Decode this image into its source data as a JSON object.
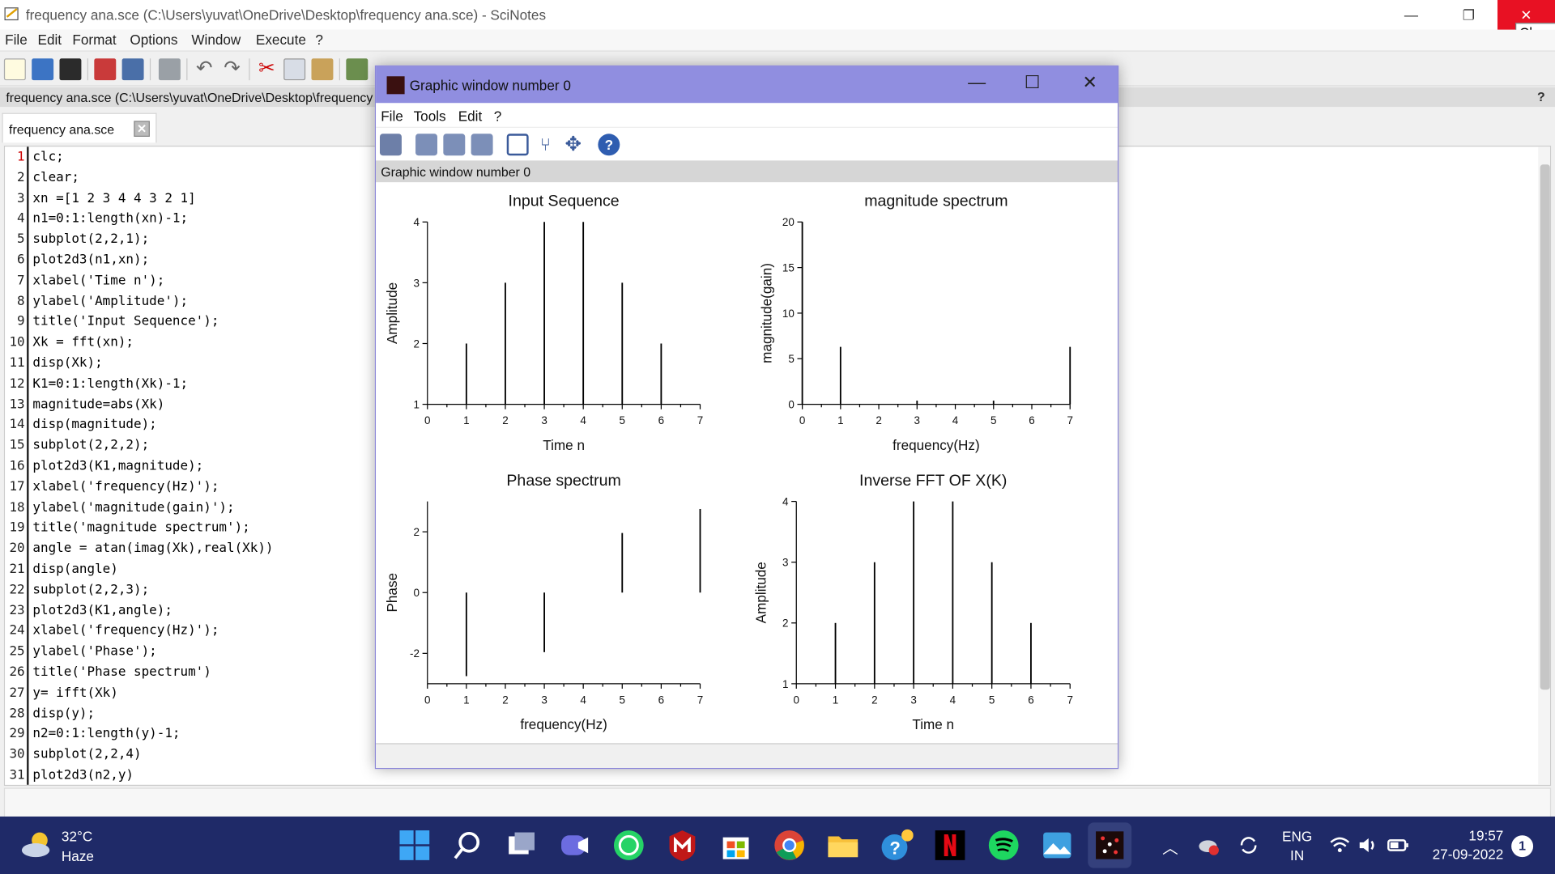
{
  "app": {
    "title": "frequency ana.sce (C:\\Users\\yuvat\\OneDrive\\Desktop\\frequency ana.sce) - SciNotes",
    "close_tooltip": "Close"
  },
  "menu": [
    "File",
    "Edit",
    "Format",
    "Options",
    "Window",
    "Execute",
    "?"
  ],
  "pathbar": {
    "path": "frequency ana.sce (C:\\Users\\yuvat\\OneDrive\\Desktop\\frequency ana.sce)",
    "help": "?"
  },
  "tab": {
    "label": "frequency ana.sce"
  },
  "editor": {
    "lines": [
      "clc;",
      "clear;",
      "xn =[1 2 3 4 4 3 2 1]",
      "n1=0:1:length(xn)-1;",
      "subplot(2,2,1);",
      "plot2d3(n1,xn);",
      "xlabel('Time n');",
      "ylabel('Amplitude');",
      "title('Input Sequence');",
      "Xk = fft(xn);",
      "disp(Xk);",
      "K1=0:1:length(Xk)-1;",
      "magnitude=abs(Xk)",
      "disp(magnitude);",
      "subplot(2,2,2);",
      "plot2d3(K1,magnitude);",
      "xlabel('frequency(Hz)');",
      "ylabel('magnitude(gain)');",
      "title('magnitude spectrum');",
      "angle = atan(imag(Xk),real(Xk))",
      "disp(angle)",
      "subplot(2,2,3);",
      "plot2d3(K1,angle);",
      "xlabel('frequency(Hz)');",
      "ylabel('Phase');",
      "title('Phase spectrum')",
      "y= ifft(Xk)",
      "disp(y);",
      "n2=0:1:length(y)-1;",
      "subplot(2,2,4)",
      "plot2d3(n2,y)"
    ]
  },
  "graphic_window": {
    "title": "Graphic window number 0",
    "menu": [
      "File",
      "Tools",
      "Edit",
      "?"
    ],
    "status": "Graphic window number 0",
    "minimize": "—",
    "maximize": "☐",
    "close": "✕"
  },
  "chart_data": [
    {
      "type": "stem",
      "title": "Input Sequence",
      "xlabel": "Time n",
      "ylabel": "Amplitude",
      "xlim": [
        0,
        7
      ],
      "ylim": [
        1,
        4
      ],
      "xticks": [
        0,
        1,
        2,
        3,
        4,
        5,
        6,
        7
      ],
      "yticks": [
        1,
        2,
        3,
        4
      ],
      "x": [
        0,
        1,
        2,
        3,
        4,
        5,
        6,
        7
      ],
      "y": [
        1,
        2,
        3,
        4,
        4,
        3,
        2,
        1
      ]
    },
    {
      "type": "stem",
      "title": "magnitude spectrum",
      "xlabel": "frequency(Hz)",
      "ylabel": "magnitude(gain)",
      "xlim": [
        0,
        7
      ],
      "ylim": [
        0,
        20
      ],
      "xticks": [
        0,
        1,
        2,
        3,
        4,
        5,
        6,
        7
      ],
      "yticks": [
        0,
        5,
        10,
        15,
        20
      ],
      "x": [
        0,
        1,
        2,
        3,
        4,
        5,
        6,
        7
      ],
      "y": [
        20,
        6.3,
        0,
        0.4,
        0,
        0.4,
        0,
        6.3
      ]
    },
    {
      "type": "stem",
      "title": "Phase spectrum",
      "xlabel": "frequency(Hz)",
      "ylabel": "Phase",
      "xlim": [
        0,
        7
      ],
      "ylim": [
        -3,
        3
      ],
      "xticks": [
        0,
        1,
        2,
        3,
        4,
        5,
        6,
        7
      ],
      "yticks": [
        -2,
        0,
        2
      ],
      "x": [
        0,
        1,
        2,
        3,
        4,
        5,
        6,
        7
      ],
      "y": [
        0,
        -2.75,
        0,
        -1.96,
        0,
        1.96,
        0,
        2.75
      ]
    },
    {
      "type": "stem",
      "title": "Inverse FFT OF X(K)",
      "xlabel": "Time n",
      "ylabel": "Amplitude",
      "xlim": [
        0,
        7
      ],
      "ylim": [
        1,
        4
      ],
      "xticks": [
        0,
        1,
        2,
        3,
        4,
        5,
        6,
        7
      ],
      "yticks": [
        1,
        2,
        3,
        4
      ],
      "x": [
        0,
        1,
        2,
        3,
        4,
        5,
        6,
        7
      ],
      "y": [
        1,
        2,
        3,
        4,
        4,
        3,
        2,
        1
      ]
    }
  ],
  "taskbar": {
    "weather_temp": "32°C",
    "weather_cond": "Haze",
    "lang_top": "ENG",
    "lang_bottom": "IN",
    "time": "19:57",
    "date": "27-09-2022",
    "notifications": "1"
  }
}
